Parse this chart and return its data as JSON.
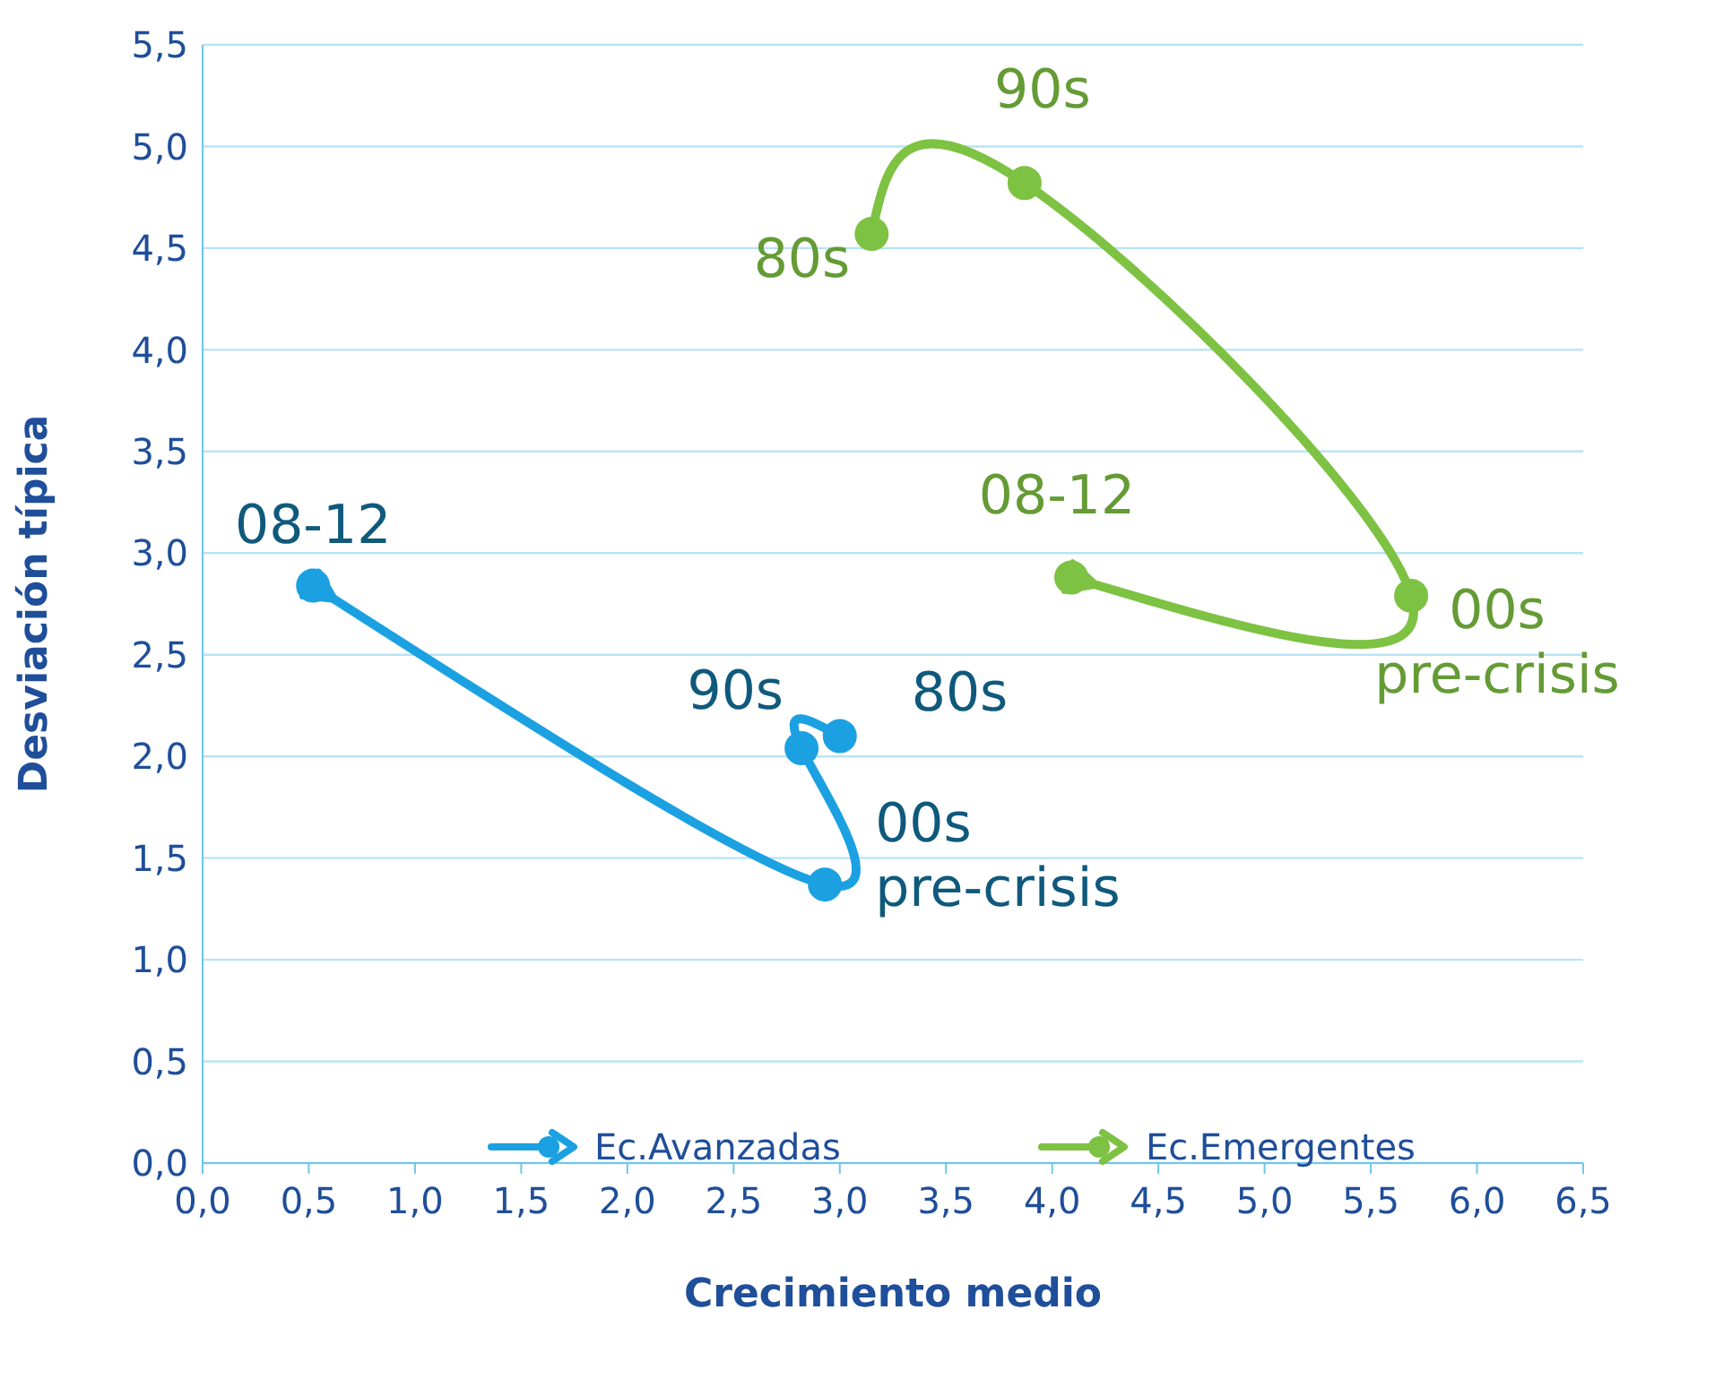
{
  "chart_data": {
    "type": "line",
    "xlabel": "Crecimiento medio",
    "ylabel": "Desviación típica",
    "xlim": [
      0,
      6.5
    ],
    "ylim": [
      0,
      5.5
    ],
    "xticks": [
      {
        "value": 0,
        "label": "0,0"
      },
      {
        "value": 0.5,
        "label": "0,5"
      },
      {
        "value": 1,
        "label": "1,0"
      },
      {
        "value": 1.5,
        "label": "1,5"
      },
      {
        "value": 2,
        "label": "2,0"
      },
      {
        "value": 2.5,
        "label": "2,5"
      },
      {
        "value": 3,
        "label": "3,0"
      },
      {
        "value": 3.5,
        "label": "3,5"
      },
      {
        "value": 4,
        "label": "4,0"
      },
      {
        "value": 4.5,
        "label": "4,5"
      },
      {
        "value": 5,
        "label": "5,0"
      },
      {
        "value": 5.5,
        "label": "5,5"
      },
      {
        "value": 6,
        "label": "6,0"
      },
      {
        "value": 6.5,
        "label": "6,5"
      }
    ],
    "yticks": [
      {
        "value": 0,
        "label": "0,0"
      },
      {
        "value": 0.5,
        "label": "0,5"
      },
      {
        "value": 1,
        "label": "1,0"
      },
      {
        "value": 1.5,
        "label": "1,5"
      },
      {
        "value": 2,
        "label": "2,0"
      },
      {
        "value": 2.5,
        "label": "2,5"
      },
      {
        "value": 3,
        "label": "3,0"
      },
      {
        "value": 3.5,
        "label": "3,5"
      },
      {
        "value": 4,
        "label": "4,0"
      },
      {
        "value": 4.5,
        "label": "4,5"
      },
      {
        "value": 5,
        "label": "5,0"
      },
      {
        "value": 5.5,
        "label": "5,5"
      }
    ],
    "series": [
      {
        "name": "Ec.Avanzadas",
        "color": "#1ba1e2",
        "x": [
          3.0,
          2.82,
          2.93,
          0.52
        ],
        "values": [
          2.1,
          2.04,
          1.37,
          2.84
        ]
      },
      {
        "name": "Ec.Emergentes",
        "color": "#7dc242",
        "x": [
          3.15,
          3.87,
          5.69,
          4.09
        ],
        "values": [
          4.57,
          4.82,
          2.79,
          2.88
        ]
      }
    ],
    "annotations": [
      {
        "text": "80s",
        "x": 3.0,
        "y": 2.1
      },
      {
        "text": "90s",
        "x": 2.82,
        "y": 2.04
      },
      {
        "text": "00s\npre-crisis",
        "x": 2.93,
        "y": 1.37
      },
      {
        "text": "08-12",
        "x": 0.52,
        "y": 2.84
      },
      {
        "text": "80s",
        "x": 3.15,
        "y": 4.57
      },
      {
        "text": "90s",
        "x": 3.87,
        "y": 4.82
      },
      {
        "text": "00s\npre-crisis",
        "x": 5.69,
        "y": 2.79
      },
      {
        "text": "08-12",
        "x": 4.09,
        "y": 2.88
      }
    ],
    "grid": "y",
    "legend": "bottom",
    "marker": "circle",
    "line_style": "solid"
  }
}
